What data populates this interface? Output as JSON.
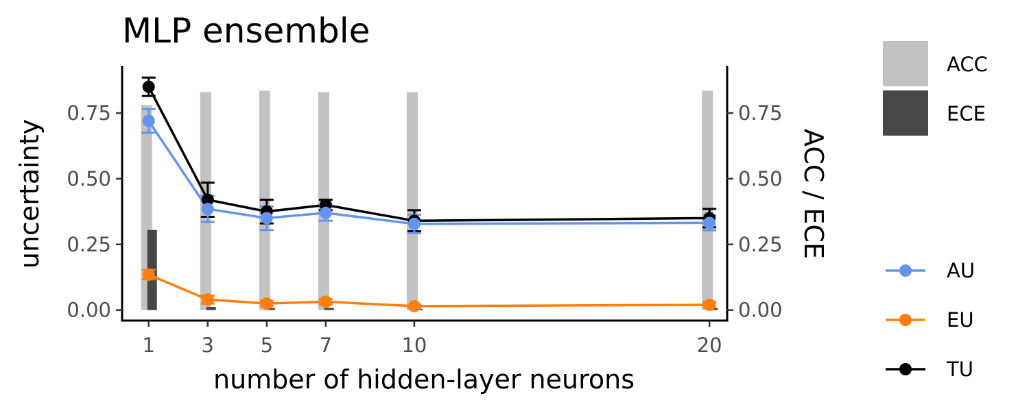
{
  "chart_data": {
    "type": "line",
    "title": "MLP ensemble",
    "xlabel": "number of hidden-layer neurons",
    "ylabel": "uncertainty",
    "ylabel_right": "ACC / ECE",
    "x": [
      1,
      3,
      5,
      7,
      10,
      20
    ],
    "x_ticks": [
      "1",
      "3",
      "5",
      "7",
      "10",
      "20"
    ],
    "y_ticks": [
      "0.00",
      "0.25",
      "0.50",
      "0.75"
    ],
    "y_ticks_right": [
      "0.00",
      "0.25",
      "0.50",
      "0.75"
    ],
    "xlim": [
      0.1,
      20.6
    ],
    "ylim": [
      -0.04,
      0.93
    ],
    "grid": false,
    "legend_position": "right",
    "bars": [
      {
        "name": "ACC",
        "color": "#c2c2c2",
        "values": [
          0.78,
          0.83,
          0.835,
          0.83,
          0.83,
          0.835
        ]
      },
      {
        "name": "ECE",
        "color": "#474747",
        "values": [
          0.305,
          0.012,
          0.008,
          0.008,
          0.005,
          0.008
        ]
      }
    ],
    "series": [
      {
        "name": "AU",
        "color": "#6495ed",
        "marker": "circle",
        "values": [
          0.72,
          0.385,
          0.35,
          0.37,
          0.328,
          0.332
        ],
        "errors": [
          0.045,
          0.05,
          0.045,
          0.03,
          0.035,
          0.028
        ]
      },
      {
        "name": "EU",
        "color": "#ff7f0e",
        "marker": "circle",
        "values": [
          0.135,
          0.04,
          0.025,
          0.032,
          0.015,
          0.02
        ],
        "errors": [
          0.018,
          0.015,
          0.01,
          0.01,
          0.006,
          0.01
        ]
      },
      {
        "name": "TU",
        "color": "#000000",
        "marker": "circle",
        "values": [
          0.85,
          0.42,
          0.375,
          0.4,
          0.34,
          0.35
        ],
        "errors": [
          0.035,
          0.065,
          0.045,
          0.02,
          0.04,
          0.035
        ]
      }
    ]
  }
}
